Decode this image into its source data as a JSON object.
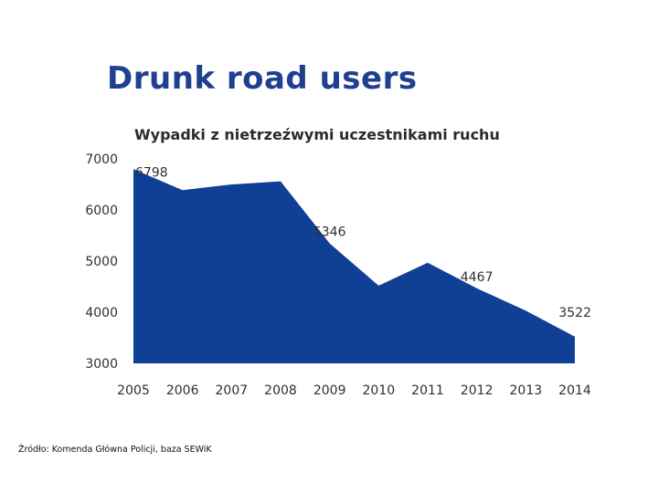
{
  "slide": {
    "title": "Drunk road users",
    "source": "Źródło: Komenda Główna Policji, baza SEWiK"
  },
  "colors": {
    "title": "#1f3f8f",
    "area": "#103f96"
  },
  "chart_data": {
    "type": "area",
    "title": "Wypadki z nietrzeźwymi uczestnikami ruchu",
    "xlabel": "",
    "ylabel": "",
    "x": [
      "2005",
      "2006",
      "2007",
      "2008",
      "2009",
      "2010",
      "2011",
      "2012",
      "2013",
      "2014"
    ],
    "values": [
      6798,
      6390,
      6500,
      6560,
      5346,
      4520,
      4970,
      4467,
      4030,
      3522
    ],
    "ylim": [
      3000,
      7000
    ],
    "yticks": [
      7000,
      6000,
      5000,
      4000,
      3000
    ],
    "data_labels": [
      {
        "index": 0,
        "text": "6798"
      },
      {
        "index": 4,
        "text": "5346"
      },
      {
        "index": 7,
        "text": "4467"
      },
      {
        "index": 9,
        "text": "3522"
      }
    ],
    "grid": false,
    "legend": "none"
  }
}
